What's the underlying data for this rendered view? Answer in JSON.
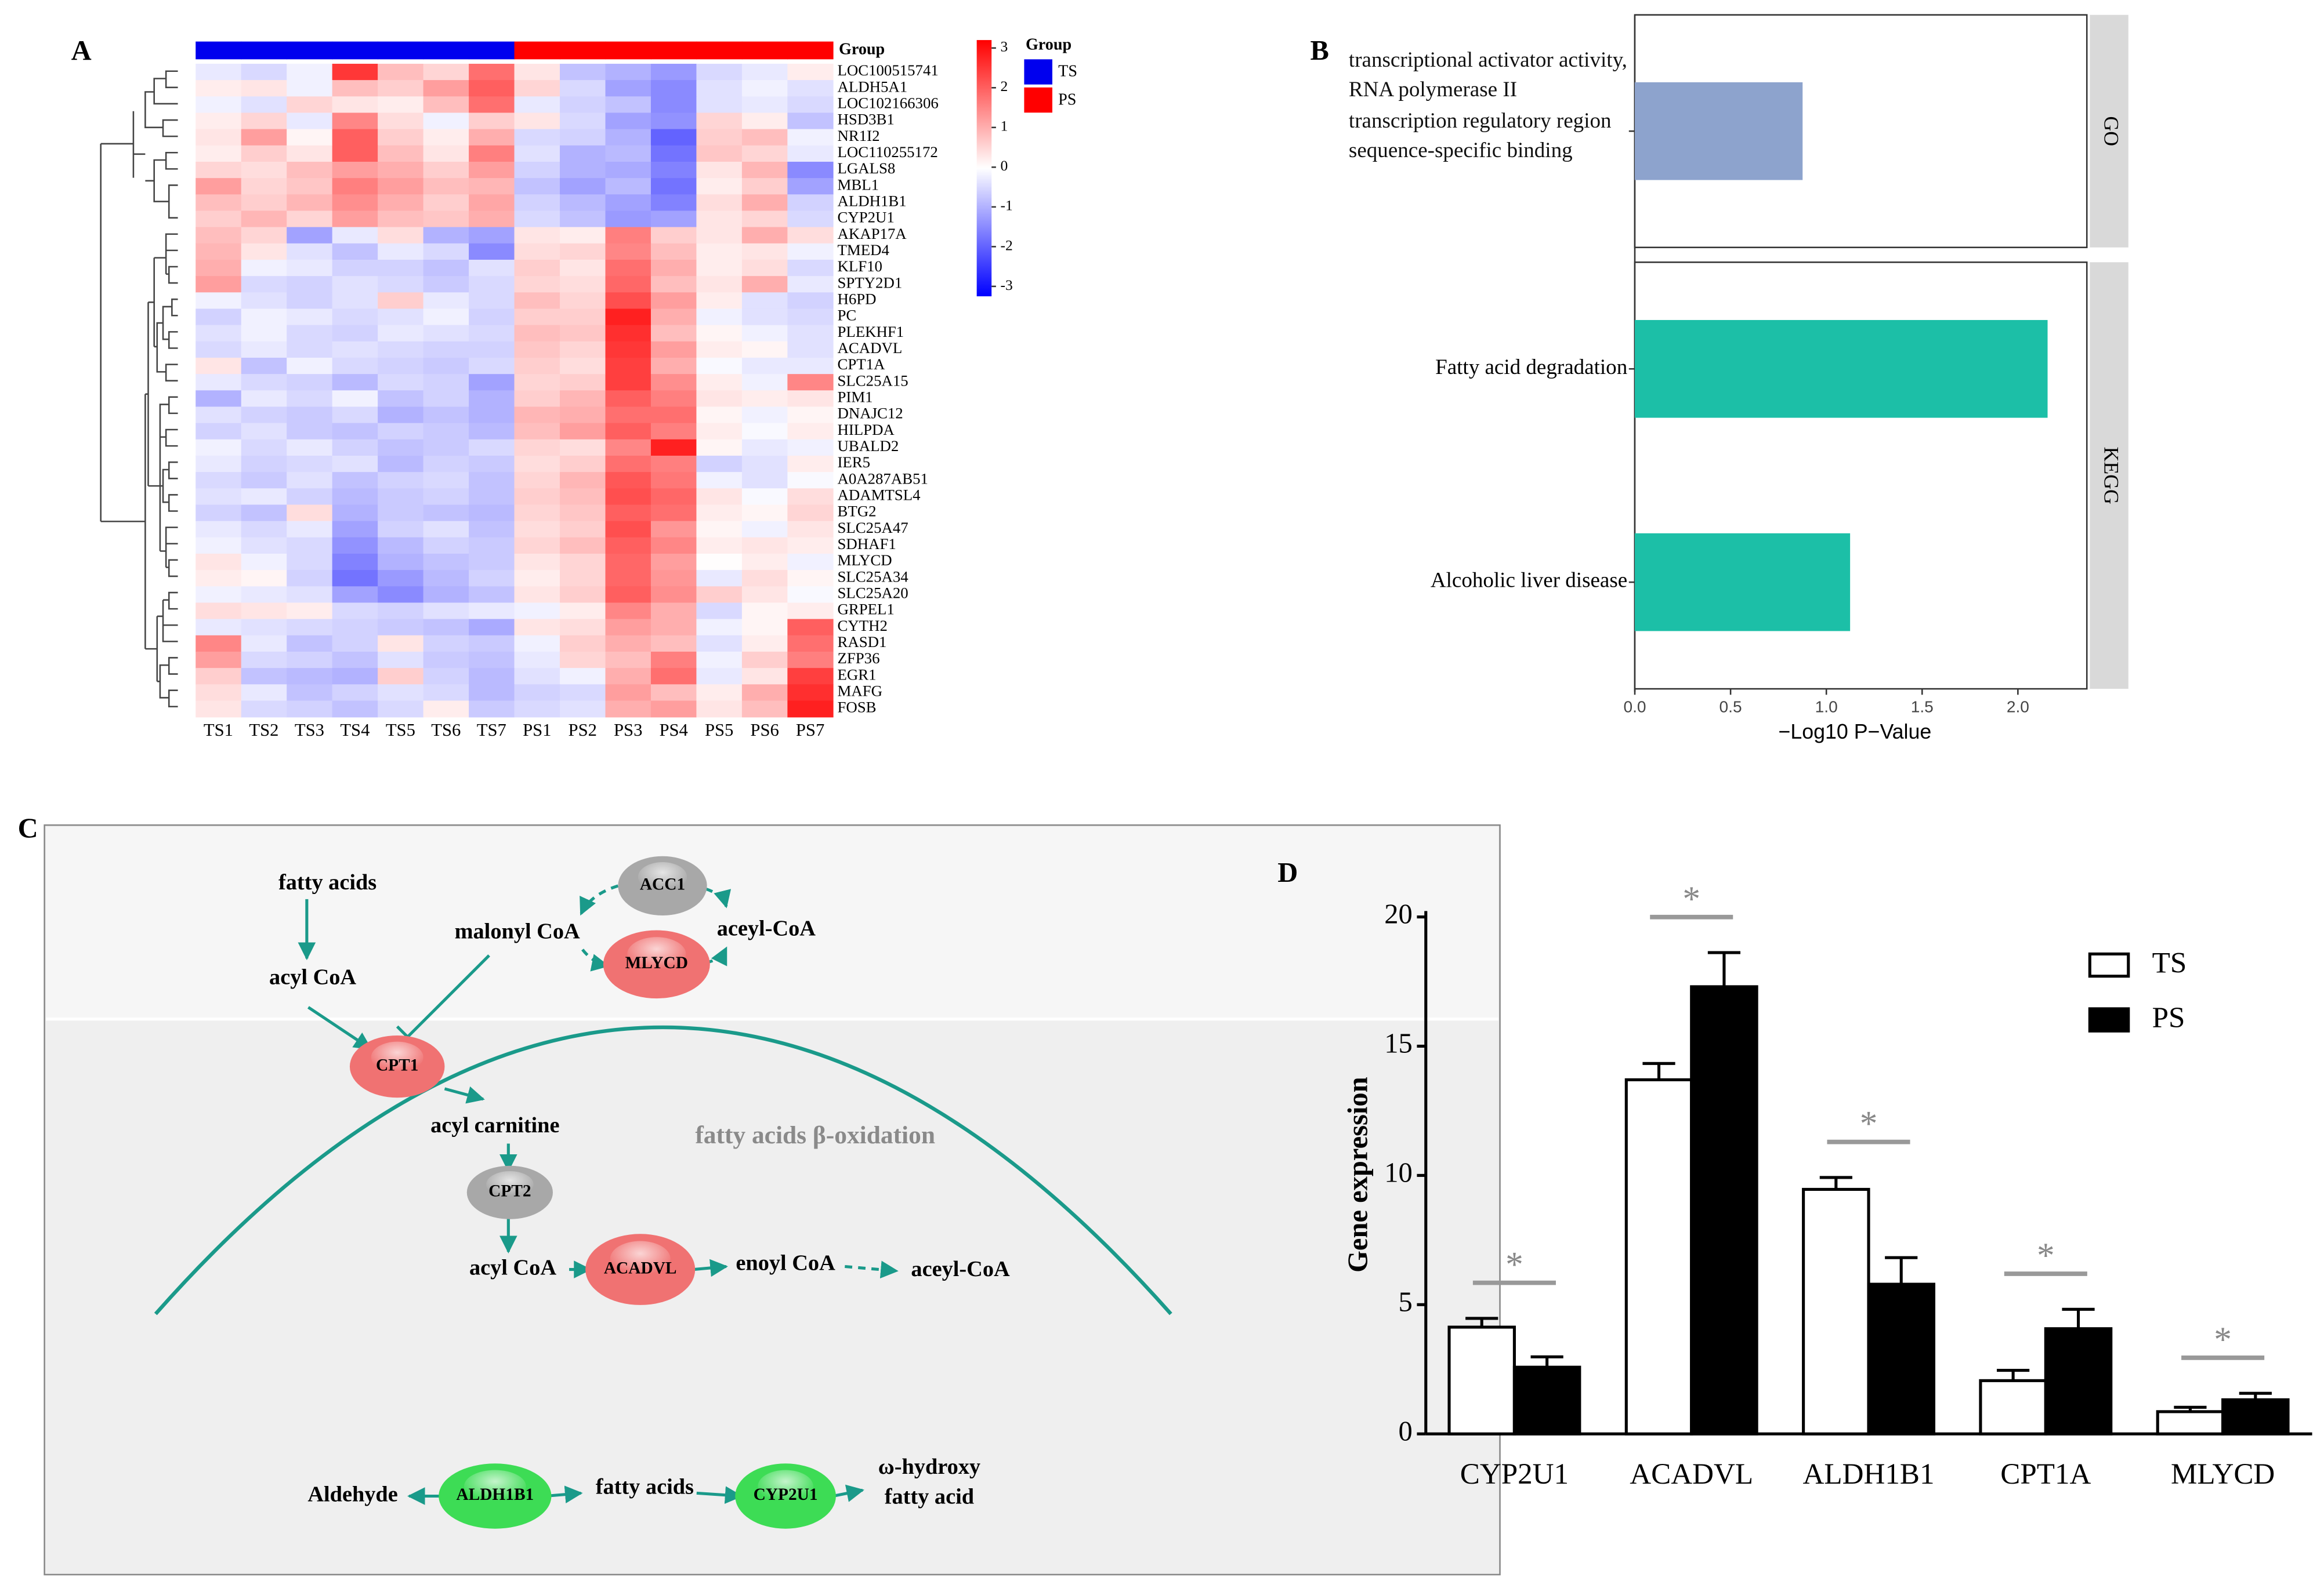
{
  "chart_data": [
    {
      "type": "heatmap",
      "panel_label": "A",
      "x": [
        "TS1",
        "TS2",
        "TS3",
        "TS4",
        "TS5",
        "TS6",
        "TS7",
        "PS1",
        "PS2",
        "PS3",
        "PS4",
        "PS5",
        "PS6",
        "PS7"
      ],
      "y": [
        "LOC100515741",
        "ALDH5A1",
        "LOC102166306",
        "HSD3B1",
        "NR1I2",
        "LOC110255172",
        "LGALS8",
        "MBL1",
        "ALDH1B1",
        "CYP2U1",
        "AKAP17A",
        "TMED4",
        "KLF10",
        "SPTY2D1",
        "H6PD",
        "PC",
        "PLEKHF1",
        "ACADVL",
        "CPT1A",
        "SLC25A15",
        "PIM1",
        "DNAJC12",
        "HILPDA",
        "UBALD2",
        "IER5",
        "A0A287AB51",
        "ADAMTSL4",
        "BTG2",
        "SLC25A47",
        "SDHAF1",
        "MLYCD",
        "SLC25A34",
        "SLC25A20",
        "GRPEL1",
        "CYTH2",
        "RASD1",
        "ZFP36",
        "EGR1",
        "MAFG",
        "FOSB"
      ],
      "z": [
        [
          -0.3,
          -0.5,
          -0.2,
          2.5,
          0.8,
          0.5,
          1.8,
          0.3,
          -0.8,
          -1.0,
          -1.3,
          -0.5,
          -0.3,
          0.2
        ],
        [
          0.2,
          0.3,
          -0.2,
          0.8,
          0.6,
          1.2,
          2.0,
          0.5,
          -0.5,
          -1.2,
          -1.5,
          -0.4,
          -0.2,
          -0.4
        ],
        [
          -0.2,
          -0.4,
          0.5,
          0.3,
          0.2,
          0.8,
          1.8,
          -0.3,
          -0.6,
          -0.8,
          -1.5,
          -0.4,
          -0.3,
          -0.5
        ],
        [
          0.2,
          0.5,
          -0.3,
          1.5,
          0.4,
          -0.2,
          0.6,
          0.3,
          -0.5,
          -1.2,
          -1.4,
          0.5,
          0.2,
          -0.8
        ],
        [
          0.3,
          1.2,
          0.1,
          2.0,
          0.6,
          0.2,
          1.0,
          -0.5,
          -0.6,
          -1.0,
          -2.0,
          0.6,
          0.8,
          -0.2
        ],
        [
          0.2,
          0.6,
          0.3,
          2.0,
          0.8,
          0.3,
          1.6,
          -0.4,
          -1.0,
          -0.9,
          -1.8,
          0.7,
          0.5,
          -0.3
        ],
        [
          0.5,
          0.4,
          0.8,
          1.2,
          1.0,
          0.6,
          1.2,
          -0.6,
          -1.0,
          -1.1,
          -1.6,
          0.3,
          0.9,
          -1.5
        ],
        [
          1.2,
          0.5,
          0.7,
          1.6,
          1.2,
          0.8,
          0.9,
          -0.8,
          -1.2,
          -0.9,
          -1.8,
          0.2,
          0.6,
          -1.2
        ],
        [
          0.8,
          0.6,
          0.9,
          1.4,
          1.0,
          0.6,
          1.1,
          -0.6,
          -0.9,
          -1.2,
          -1.6,
          0.4,
          1.0,
          -0.6
        ],
        [
          0.6,
          0.9,
          0.5,
          1.2,
          0.8,
          0.7,
          1.0,
          -0.5,
          -0.8,
          -1.3,
          -1.2,
          0.3,
          0.5,
          -0.5
        ],
        [
          0.8,
          0.5,
          -1.2,
          -0.3,
          0.4,
          -1.0,
          -1.2,
          0.3,
          0.2,
          1.6,
          0.6,
          0.3,
          1.0,
          0.4
        ],
        [
          0.9,
          0.3,
          -0.4,
          -0.8,
          -0.3,
          -0.5,
          -1.5,
          0.4,
          0.5,
          1.5,
          0.8,
          0.2,
          0.3,
          -0.2
        ],
        [
          1.0,
          -0.2,
          -0.3,
          -0.6,
          -0.6,
          -0.8,
          -0.4,
          0.6,
          0.3,
          1.8,
          1.0,
          0.2,
          0.4,
          -0.5
        ],
        [
          1.2,
          -0.5,
          -0.6,
          -0.4,
          -0.5,
          -0.7,
          -0.5,
          0.5,
          0.4,
          1.9,
          0.8,
          0.3,
          1.0,
          -0.3
        ],
        [
          -0.2,
          -0.4,
          -0.6,
          -0.4,
          0.6,
          -0.3,
          -0.5,
          0.8,
          0.5,
          2.2,
          1.2,
          0.2,
          -0.4,
          -0.6
        ],
        [
          -0.6,
          -0.2,
          -0.3,
          -0.5,
          -0.4,
          -0.2,
          -0.6,
          0.6,
          0.6,
          2.8,
          1.0,
          -0.2,
          -0.4,
          -0.5
        ],
        [
          -0.4,
          -0.2,
          -0.5,
          -0.6,
          -0.3,
          -0.4,
          -0.5,
          0.8,
          0.7,
          2.6,
          0.8,
          0.1,
          -0.2,
          -0.4
        ],
        [
          -0.5,
          -0.3,
          -0.5,
          -0.4,
          -0.5,
          -0.6,
          -0.6,
          0.7,
          0.5,
          2.5,
          1.2,
          0.2,
          0.1,
          -0.4
        ],
        [
          0.3,
          -0.8,
          -0.2,
          -0.5,
          -0.6,
          -0.7,
          -0.5,
          0.6,
          0.4,
          2.4,
          1.0,
          -0.1,
          -0.3,
          -0.3
        ],
        [
          -0.3,
          -0.5,
          -0.6,
          -0.9,
          -0.5,
          -0.6,
          -1.2,
          0.5,
          0.6,
          2.4,
          1.4,
          0.2,
          -0.2,
          1.5
        ],
        [
          -1.0,
          -0.3,
          -0.5,
          -0.2,
          -0.8,
          -0.6,
          -1.0,
          0.6,
          0.9,
          2.0,
          1.6,
          0.3,
          0.2,
          0.3
        ],
        [
          -0.4,
          -0.6,
          -0.7,
          -0.5,
          -1.0,
          -0.8,
          -1.0,
          0.9,
          1.0,
          1.8,
          1.8,
          0.1,
          -0.2,
          0.1
        ],
        [
          -0.6,
          -0.4,
          -0.7,
          -0.8,
          -0.6,
          -0.7,
          -0.9,
          0.8,
          1.2,
          2.0,
          1.6,
          0.2,
          -0.1,
          0.2
        ],
        [
          -0.2,
          -0.5,
          -0.3,
          -0.6,
          -0.8,
          -0.7,
          -0.5,
          0.5,
          0.4,
          1.5,
          2.8,
          0.1,
          -0.3,
          -0.2
        ],
        [
          -0.3,
          -0.6,
          -0.5,
          -0.4,
          -0.9,
          -0.6,
          -0.7,
          0.4,
          0.6,
          1.8,
          1.6,
          -0.6,
          -0.4,
          0.2
        ],
        [
          -0.5,
          -0.7,
          -0.4,
          -0.8,
          -0.6,
          -0.5,
          -0.8,
          0.5,
          0.9,
          2.1,
          1.7,
          -0.2,
          -0.4,
          -0.1
        ],
        [
          -0.4,
          -0.3,
          -0.6,
          -0.9,
          -0.7,
          -0.6,
          -0.8,
          0.6,
          0.8,
          2.2,
          1.9,
          0.3,
          -0.1,
          0.4
        ],
        [
          -0.6,
          -0.8,
          0.4,
          -1.0,
          -0.7,
          -0.8,
          -0.9,
          0.5,
          0.7,
          2.0,
          1.8,
          0.2,
          0.1,
          0.5
        ],
        [
          -0.3,
          -0.5,
          -0.3,
          -1.2,
          -0.6,
          -0.4,
          -0.8,
          0.4,
          0.6,
          2.2,
          1.3,
          0.1,
          -0.2,
          0.3
        ],
        [
          -0.2,
          -0.4,
          -0.5,
          -1.4,
          -0.9,
          -0.6,
          -0.7,
          0.5,
          0.8,
          2.0,
          1.5,
          0.2,
          0.3,
          0.2
        ],
        [
          0.3,
          -0.2,
          -0.5,
          -1.6,
          -1.0,
          -0.8,
          -0.7,
          0.3,
          0.5,
          1.9,
          1.2,
          0.0,
          0.2,
          -0.2
        ],
        [
          0.2,
          0.1,
          -0.6,
          -1.8,
          -1.3,
          -0.9,
          -0.6,
          0.2,
          0.5,
          1.9,
          1.3,
          -0.3,
          0.4,
          0.1
        ],
        [
          -0.2,
          -0.3,
          -0.4,
          -1.2,
          -1.5,
          -1.0,
          -0.8,
          0.3,
          0.6,
          2.0,
          1.4,
          0.6,
          0.3,
          -0.1
        ],
        [
          0.4,
          0.3,
          0.2,
          -0.5,
          -0.6,
          -0.4,
          -0.3,
          -0.2,
          0.2,
          1.5,
          1.0,
          -0.5,
          0.1,
          0.2
        ],
        [
          -0.3,
          -0.4,
          -0.5,
          -0.6,
          -0.7,
          -0.8,
          -1.1,
          0.3,
          0.4,
          1.2,
          1.0,
          -0.2,
          0.1,
          2.0
        ],
        [
          1.5,
          -0.3,
          -0.8,
          -0.6,
          0.3,
          -0.6,
          -0.7,
          -0.2,
          0.6,
          1.0,
          0.8,
          -0.4,
          0.2,
          1.8
        ],
        [
          1.2,
          -0.5,
          -0.6,
          -0.8,
          -0.4,
          -0.7,
          -0.8,
          -0.3,
          0.5,
          0.8,
          1.6,
          -0.2,
          0.6,
          1.6
        ],
        [
          0.6,
          -0.8,
          -0.9,
          -1.0,
          0.6,
          -0.6,
          -0.9,
          -0.4,
          -0.2,
          1.0,
          1.8,
          -0.3,
          0.3,
          2.4
        ],
        [
          0.4,
          -0.3,
          -0.8,
          -0.6,
          -0.4,
          -0.5,
          -0.9,
          -0.6,
          -0.5,
          1.2,
          0.8,
          0.2,
          1.0,
          2.6
        ],
        [
          0.3,
          -0.5,
          -0.6,
          -0.8,
          -0.5,
          0.2,
          -0.7,
          -0.5,
          -0.4,
          1.0,
          1.2,
          0.3,
          0.8,
          2.8
        ]
      ],
      "groups": [
        "TS",
        "TS",
        "TS",
        "TS",
        "TS",
        "TS",
        "TS",
        "PS",
        "PS",
        "PS",
        "PS",
        "PS",
        "PS",
        "PS"
      ],
      "group_title": "Group",
      "group_names": [
        "TS",
        "PS"
      ],
      "group_colors": [
        "#0000ee",
        "#ff0000"
      ],
      "colorscale": [
        "#0000ff",
        "#ffffff",
        "#ff0000"
      ],
      "zlim": [
        -3.25,
        3.2
      ],
      "zticks": [
        3,
        2,
        1,
        0,
        -1,
        -2,
        -3
      ]
    },
    {
      "type": "barh",
      "panel_label": "B",
      "categories": [
        "transcriptional activator activity, RNA polymerase II transcription regulatory region sequence-specific binding",
        "Fatty acid degradation",
        "Alcoholic liver disease"
      ],
      "values": [
        0.876,
        2.155,
        1.124
      ],
      "facets": [
        "GO",
        "KEGG",
        "KEGG"
      ],
      "colors": [
        "#8da3cd",
        "#1cbfa7",
        "#1cbfa7"
      ],
      "xlabel": "−Log10 P−Value",
      "xlim": [
        0,
        2.36
      ],
      "xticks": [
        {
          "value": 0,
          "label": "0.0"
        },
        {
          "value": 0.5,
          "label": "0.5"
        },
        {
          "value": 1,
          "label": "1.0"
        },
        {
          "value": 1.5,
          "label": "1.5"
        },
        {
          "value": 2,
          "label": "2.0"
        }
      ]
    },
    {
      "type": "bar",
      "panel_label": "D",
      "categories": [
        "CYP2U1",
        "ACADVL",
        "ALDH1B1",
        "CPT1A",
        "MLYCD"
      ],
      "series": [
        {
          "name": "TS",
          "color": "#ffffff",
          "values": [
            4.13,
            13.7,
            9.46,
            2.06,
            0.86
          ],
          "errors": [
            0.34,
            0.63,
            0.46,
            0.4,
            0.17
          ]
        },
        {
          "name": "PS",
          "color": "#000000",
          "values": [
            2.58,
            17.3,
            5.79,
            4.07,
            1.32
          ],
          "errors": [
            0.4,
            1.32,
            1.03,
            0.75,
            0.25
          ]
        }
      ],
      "annotations": [
        "*",
        "*",
        "*",
        "*",
        "*"
      ],
      "ylabel": "Gene expression",
      "ylim": [
        0,
        20
      ],
      "yticks": [
        0,
        5,
        10,
        15,
        20
      ],
      "legend": "upper right"
    }
  ],
  "diagram": {
    "panel_label": "C",
    "title": "fatty acids β-oxidation",
    "metabolites": [
      "fatty acids",
      "acyl CoA",
      "malonyl CoA",
      "aceyl-CoA",
      "acyl carnitine",
      "acyl CoA",
      "enoyl CoA",
      "aceyl-CoA",
      "Aldehyde",
      "fatty acids",
      "ω-hydroxy fatty acid"
    ],
    "enzymes": [
      {
        "label": "ACC1",
        "color": "#a8a8a8"
      },
      {
        "label": "MLYCD",
        "color": "#f07272"
      },
      {
        "label": "CPT1",
        "color": "#f07272"
      },
      {
        "label": "CPT2",
        "color": "#a8a8a8"
      },
      {
        "label": "ACADVL",
        "color": "#f07272"
      },
      {
        "label": "ALDH1B1",
        "color": "#3ddc55"
      },
      {
        "label": "CYP2U1",
        "color": "#3ddc55"
      }
    ]
  }
}
